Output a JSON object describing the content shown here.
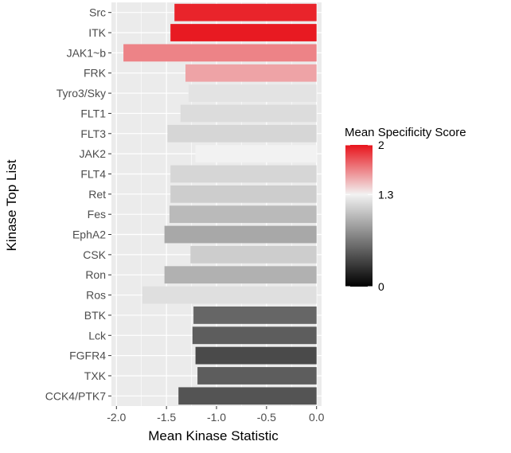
{
  "chart_data": {
    "type": "bar",
    "orientation": "horizontal",
    "xlabel": "Mean Kinase Statistic",
    "ylabel": "Kinase Top List",
    "xlim": [
      -2.05,
      0.05
    ],
    "x_ticks": [
      -2.0,
      -1.5,
      -1.0,
      -0.5,
      0.0
    ],
    "x_tick_labels": [
      "-2.0",
      "-1.5",
      "-1.0",
      "-0.5",
      "0.0"
    ],
    "grid": true,
    "legend": {
      "title": "Mean Specificity Score",
      "placement": "right",
      "min": 0,
      "max": 2,
      "ticks": [
        0,
        1.3,
        2
      ],
      "tick_labels": [
        "0",
        "1.3",
        "2"
      ]
    },
    "colors": {
      "low": "#000000",
      "mid": "#f2f2f2",
      "high": "#e8141c",
      "panel": "#ebebeb",
      "grid": "#ffffff"
    },
    "categories": [
      "Src",
      "ITK",
      "JAK1~b",
      "FRK",
      "Tyro3/Sky",
      "FLT1",
      "FLT3",
      "JAK2",
      "FLT4",
      "Ret",
      "Fes",
      "EphA2",
      "CSK",
      "Ron",
      "Ros",
      "BTK",
      "Lck",
      "FGFR4",
      "TXK",
      "CCK4/PTK7"
    ],
    "values": [
      -1.42,
      -1.46,
      -1.93,
      -1.31,
      -1.28,
      -1.36,
      -1.49,
      -1.21,
      -1.46,
      -1.46,
      -1.47,
      -1.52,
      -1.26,
      -1.52,
      -1.74,
      -1.23,
      -1.24,
      -1.21,
      -1.19,
      -1.38
    ],
    "specificity": [
      1.95,
      1.98,
      1.65,
      1.55,
      1.22,
      1.18,
      1.15,
      1.3,
      1.15,
      1.1,
      1.0,
      0.9,
      1.1,
      0.95,
      1.2,
      0.55,
      0.5,
      0.4,
      0.5,
      0.45
    ]
  }
}
